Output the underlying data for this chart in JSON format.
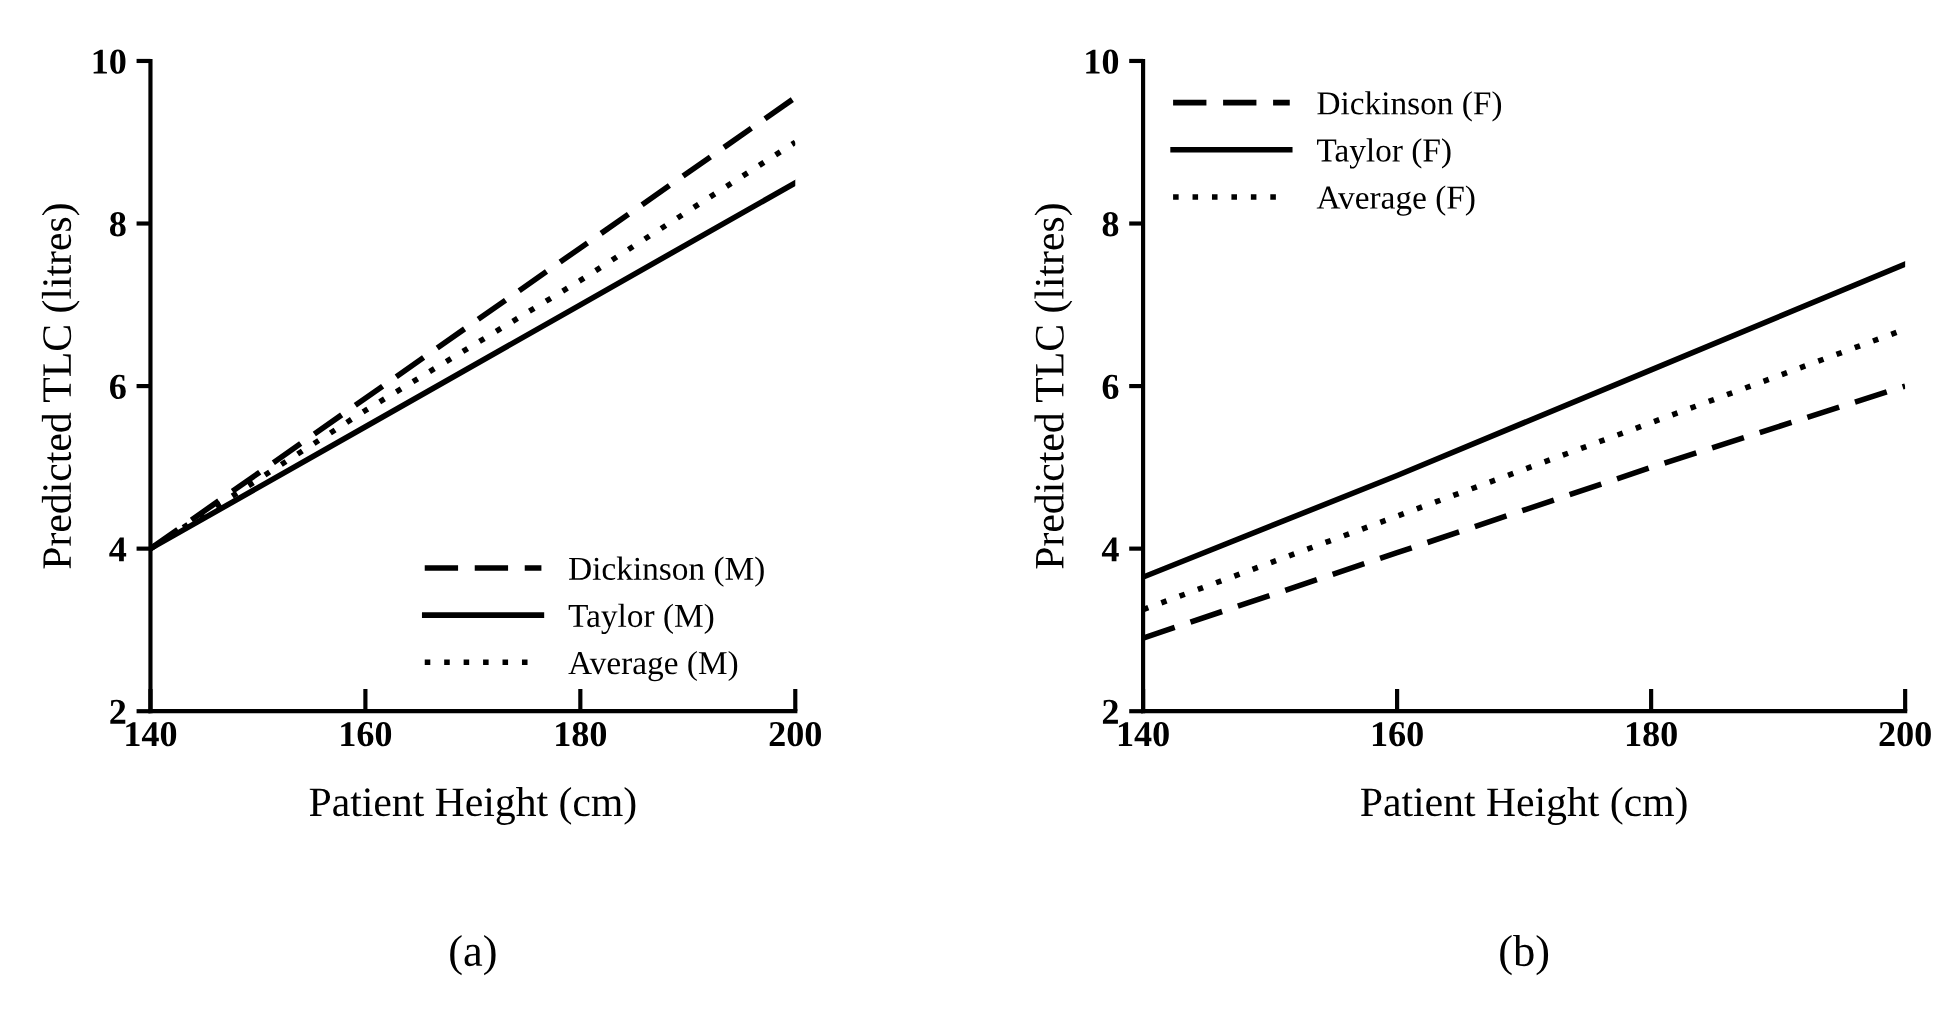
{
  "chart_data": [
    {
      "type": "line",
      "xlabel": "Patient Height (cm)",
      "ylabel": "Predicted TLC (litres)",
      "xlim": [
        140,
        200
      ],
      "xticks": [
        140,
        160,
        180,
        200
      ],
      "ylim": [
        2,
        10
      ],
      "yticks": [
        2,
        4,
        6,
        8,
        10
      ],
      "grid": false,
      "legend": "bottom right",
      "annotations": [
        "(a)"
      ],
      "series": [
        {
          "name": "Dickinson (M)",
          "color": "#000000",
          "line_style": "dashed",
          "x": [
            140,
            160,
            180,
            200
          ],
          "values": [
            4.0,
            5.85,
            7.7,
            9.55
          ]
        },
        {
          "name": "Taylor (M)",
          "color": "#000000",
          "line_style": "solid",
          "x": [
            140,
            160,
            180,
            200
          ],
          "values": [
            4.0,
            5.5,
            7.0,
            8.5
          ]
        },
        {
          "name": "Average (M)",
          "color": "#000000",
          "line_style": "dotted",
          "x": [
            140,
            160,
            180,
            200
          ],
          "values": [
            4.0,
            5.7,
            7.3,
            9.0
          ]
        }
      ]
    },
    {
      "type": "line",
      "xlabel": "Patient Height (cm)",
      "ylabel": "Predicted TLC (litres)",
      "xlim": [
        140,
        200
      ],
      "xticks": [
        140,
        160,
        180,
        200
      ],
      "ylim": [
        2,
        10
      ],
      "yticks": [
        2,
        4,
        6,
        8,
        10
      ],
      "grid": false,
      "legend": "top left",
      "annotations": [
        "(b)"
      ],
      "series": [
        {
          "name": "Dickinson (F)",
          "color": "#000000",
          "line_style": "dashed",
          "x": [
            140,
            160,
            180,
            200
          ],
          "values": [
            2.9,
            3.95,
            5.0,
            6.0
          ]
        },
        {
          "name": "Taylor (F)",
          "color": "#000000",
          "line_style": "solid",
          "x": [
            140,
            160,
            180,
            200
          ],
          "values": [
            3.65,
            4.9,
            6.2,
            7.5
          ]
        },
        {
          "name": "Average (F)",
          "color": "#000000",
          "line_style": "dotted",
          "x": [
            140,
            160,
            180,
            200
          ],
          "values": [
            3.25,
            4.4,
            5.55,
            6.7
          ]
        }
      ]
    }
  ]
}
